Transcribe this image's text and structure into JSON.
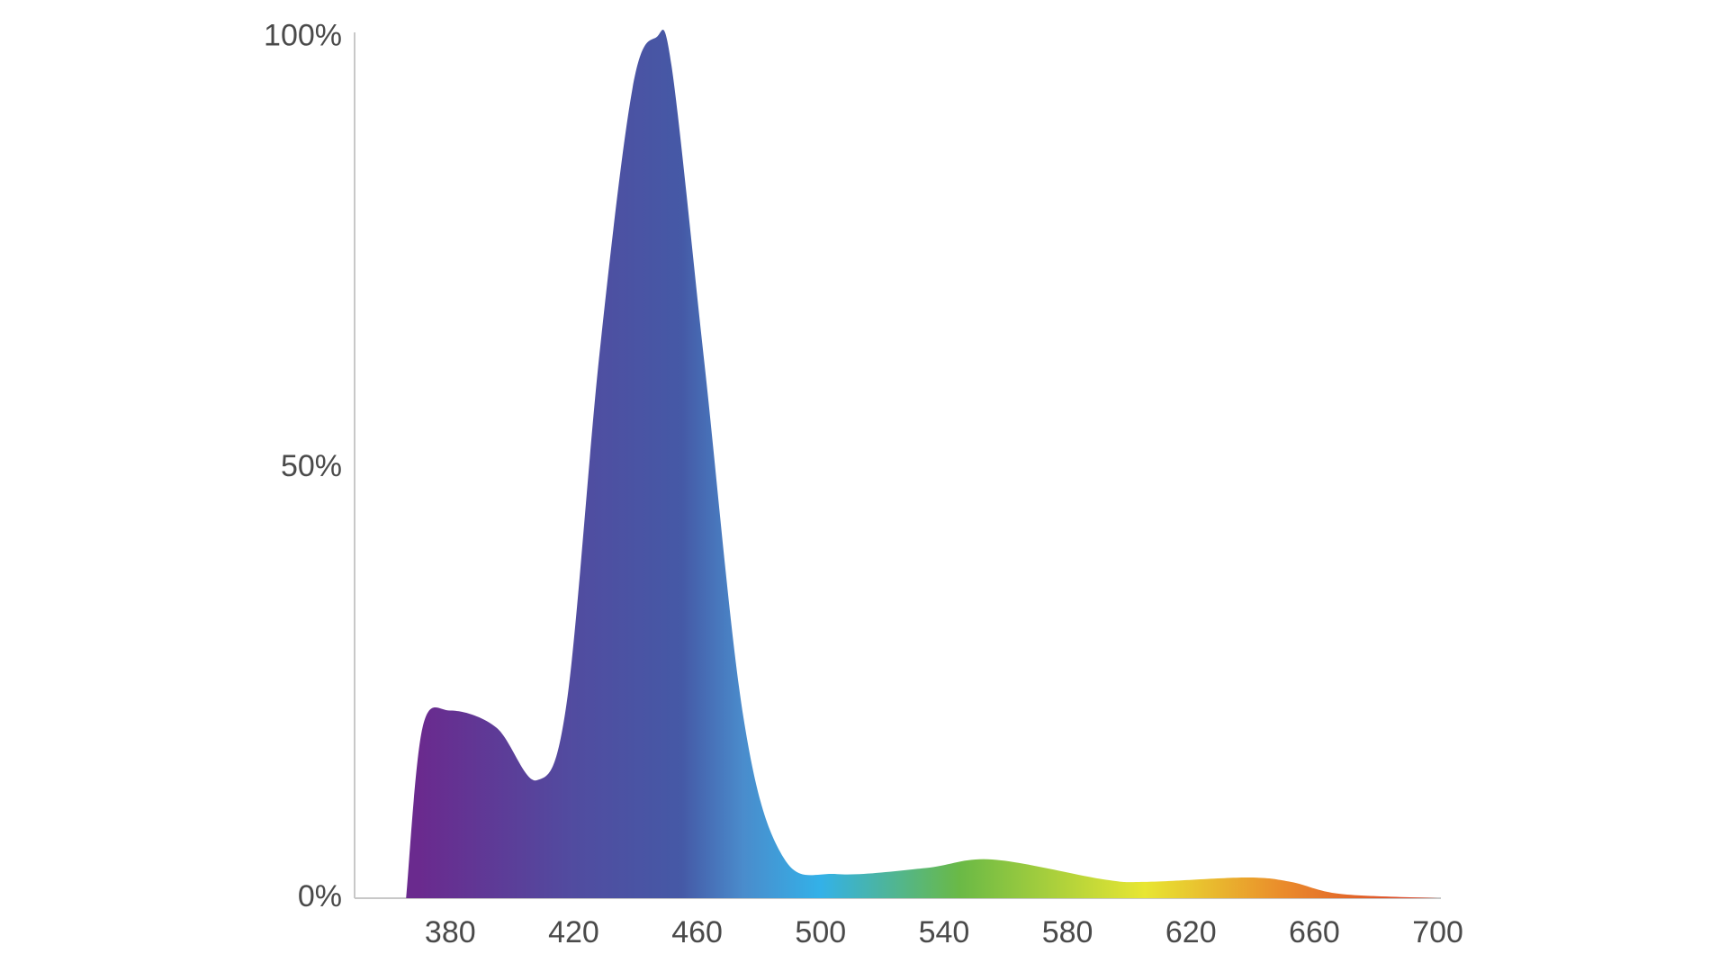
{
  "chart_data": {
    "type": "area",
    "x": [
      365.7,
      371,
      380,
      395,
      408,
      417.6,
      428.4,
      439,
      446.7,
      451.7,
      462.4,
      475,
      488,
      505.4,
      534,
      555.6,
      591.5,
      605.8,
      638,
      652.4,
      668.5,
      700
    ],
    "values": [
      0,
      19.8,
      21.8,
      19.8,
      13.7,
      22.4,
      63.4,
      94,
      100,
      96.7,
      62,
      21,
      4.7,
      2.8,
      3.5,
      4.5,
      2.2,
      1.9,
      2.4,
      1.9,
      0.5,
      0
    ],
    "xlim": [
      349,
      701
    ],
    "xticks": [
      380,
      420,
      460,
      500,
      540,
      580,
      620,
      660,
      700
    ],
    "ylim": [
      0,
      100
    ],
    "yticks": [
      {
        "value": 0,
        "label": "0%"
      },
      {
        "value": 50,
        "label": "50%"
      },
      {
        "value": 100,
        "label": "100%"
      }
    ],
    "gradient_stops": [
      {
        "x": 370,
        "color": "#6a2a8e"
      },
      {
        "x": 420,
        "color": "#514ca0"
      },
      {
        "x": 455,
        "color": "#4559a6"
      },
      {
        "x": 475,
        "color": "#4a8ccc"
      },
      {
        "x": 500,
        "color": "#33b1e8"
      },
      {
        "x": 545,
        "color": "#6ab946"
      },
      {
        "x": 605,
        "color": "#e8e632"
      },
      {
        "x": 650,
        "color": "#ea8b2b"
      },
      {
        "x": 690,
        "color": "#dd4a2a"
      }
    ],
    "grid": false
  }
}
